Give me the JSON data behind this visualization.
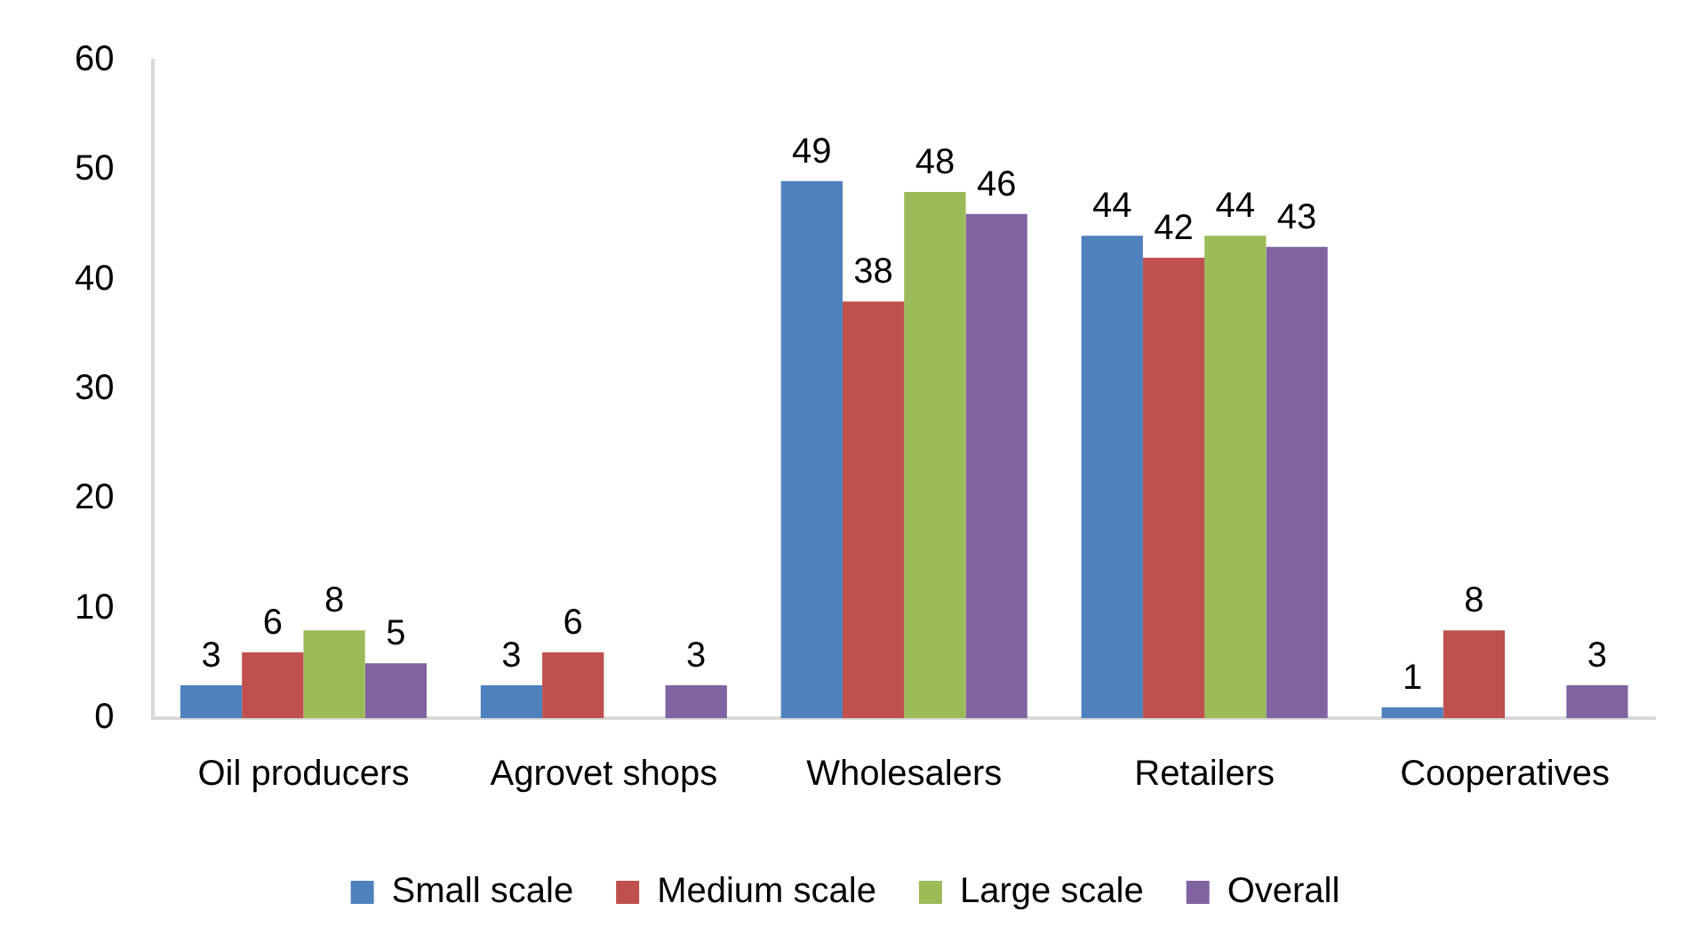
{
  "chart_data": {
    "type": "bar",
    "categories": [
      "Oil producers",
      "Agrovet shops",
      "Wholesalers",
      "Retailers",
      "Cooperatives"
    ],
    "series": [
      {
        "name": "Small scale",
        "color": "#4f81bd",
        "values": [
          3,
          3,
          49,
          44,
          1
        ]
      },
      {
        "name": "Medium scale",
        "color": "#c0504d",
        "values": [
          6,
          6,
          38,
          42,
          8
        ]
      },
      {
        "name": "Large scale",
        "color": "#9bbb59",
        "values": [
          8,
          null,
          48,
          44,
          null
        ]
      },
      {
        "name": "Overall",
        "color": "#8064a2",
        "values": [
          5,
          3,
          46,
          43,
          3
        ]
      }
    ],
    "ylim": [
      0,
      60
    ],
    "yticks": [
      0,
      10,
      20,
      30,
      40,
      50,
      60
    ],
    "grid": false,
    "legend": "bottom",
    "data_labels": true
  }
}
